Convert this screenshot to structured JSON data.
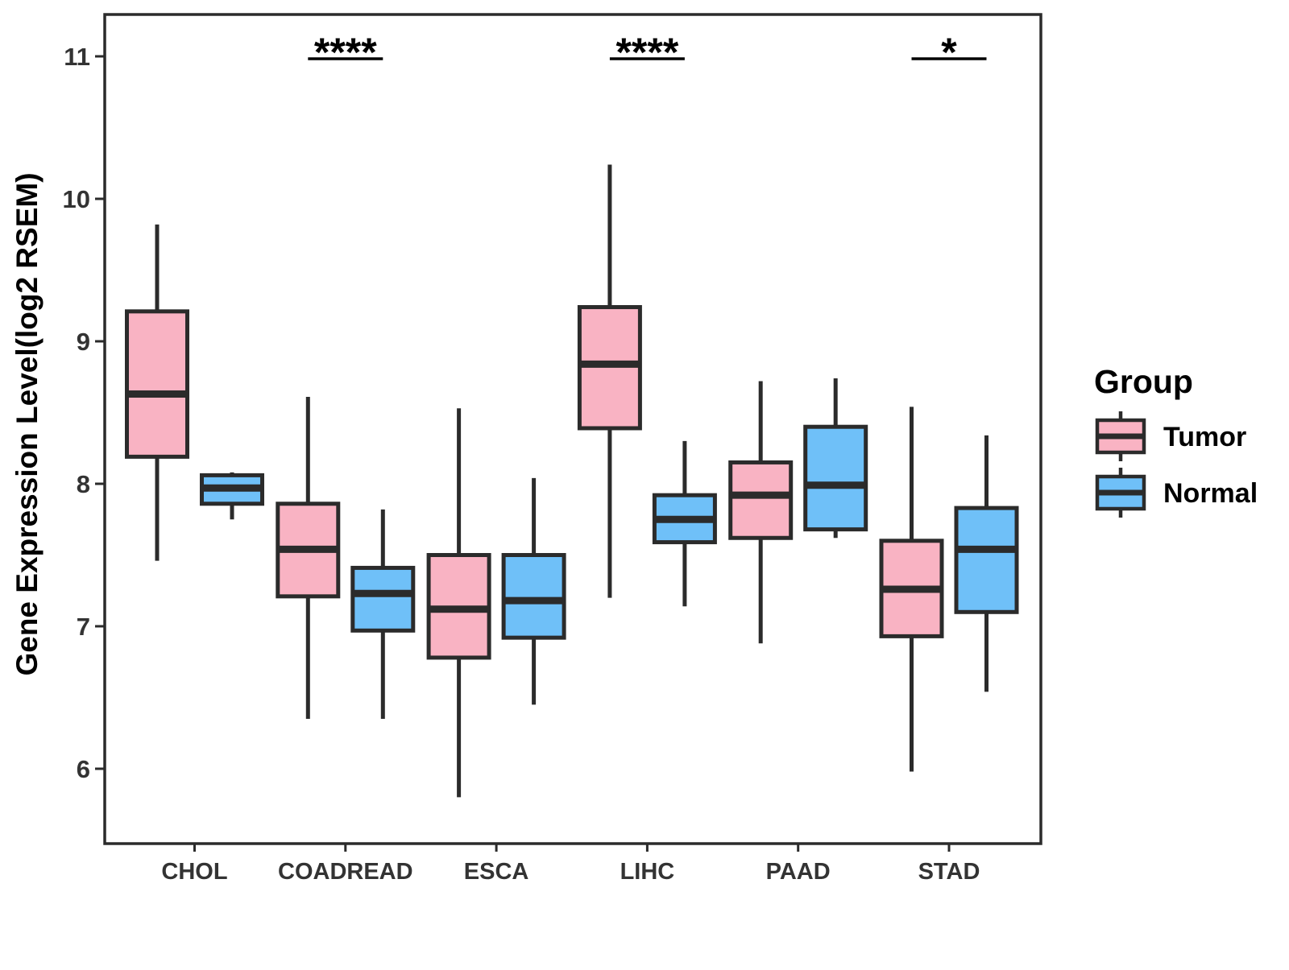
{
  "y_axis": {
    "title": "Gene Expression Level(log2 RSEM)",
    "tick_labels": [
      6,
      7,
      8,
      9,
      10,
      11
    ],
    "range": [
      5.48,
      11.29
    ]
  },
  "x_axis": {
    "categories": [
      "CHOL",
      "COADREAD",
      "ESCA",
      "LIHC",
      "PAAD",
      "STAD"
    ]
  },
  "legend": {
    "title": "Group",
    "position": "right",
    "items": [
      {
        "label": "Tumor",
        "fill": "#F9B3C3"
      },
      {
        "label": "Normal",
        "fill": "#6FC0F8"
      }
    ]
  },
  "colors": {
    "tumor_fill": "#F9B3C3",
    "normal_fill": "#6FC0F8",
    "line": "#2B2B2B",
    "axis_text": "#333333",
    "background": "#FFFFFF"
  },
  "chart_data": {
    "type": "boxplot",
    "title": "",
    "xlabel": "",
    "ylabel": "Gene Expression Level(log2 RSEM)",
    "ylim": [
      5.48,
      11.29
    ],
    "grid": false,
    "legend_position": "right",
    "categories": [
      "CHOL",
      "COADREAD",
      "ESCA",
      "LIHC",
      "PAAD",
      "STAD"
    ],
    "stat_keys": [
      "whisker_min",
      "q1",
      "median",
      "q3",
      "whisker_max"
    ],
    "series": [
      {
        "name": "Tumor",
        "values": [
          [
            7.46,
            8.19,
            8.63,
            9.21,
            9.82
          ],
          [
            6.35,
            7.21,
            7.54,
            7.86,
            8.61
          ],
          [
            5.8,
            6.78,
            7.12,
            7.5,
            8.53
          ],
          [
            7.2,
            8.39,
            8.84,
            9.24,
            10.24
          ],
          [
            6.88,
            7.62,
            7.92,
            8.15,
            8.72
          ],
          [
            5.98,
            6.93,
            7.26,
            7.6,
            8.54
          ]
        ]
      },
      {
        "name": "Normal",
        "values": [
          [
            7.75,
            7.86,
            7.97,
            8.06,
            8.08
          ],
          [
            6.35,
            6.97,
            7.23,
            7.41,
            7.82
          ],
          [
            6.45,
            6.92,
            7.18,
            7.5,
            8.04
          ],
          [
            7.14,
            7.59,
            7.75,
            7.92,
            8.3
          ],
          [
            7.62,
            7.68,
            7.99,
            8.4,
            8.74
          ],
          [
            6.54,
            7.1,
            7.54,
            7.83,
            8.34
          ]
        ]
      }
    ],
    "significance": [
      {
        "category": "COADREAD",
        "label": "****"
      },
      {
        "category": "LIHC",
        "label": "****"
      },
      {
        "category": "STAD",
        "label": "*"
      }
    ]
  }
}
